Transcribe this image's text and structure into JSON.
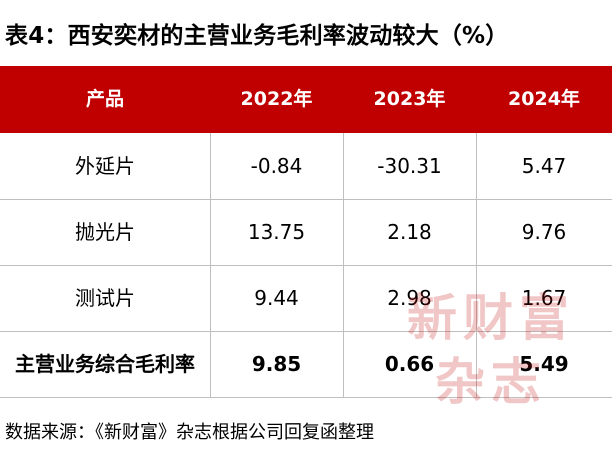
{
  "title": "表4：西安奕材的主营业务毛利率波动较大（%）",
  "table": {
    "headers": [
      "产品",
      "2022年",
      "2023年",
      "2024年"
    ],
    "rows": [
      [
        "外延片",
        "-0.84",
        "-30.31",
        "5.47"
      ],
      [
        "抛光片",
        "13.75",
        "2.18",
        "9.76"
      ],
      [
        "测试片",
        "9.44",
        "2.98",
        "1.67"
      ],
      [
        "主营业务综合毛利率",
        "9.85",
        "0.66",
        "5.49"
      ]
    ]
  },
  "source": "数据来源：《新财富》杂志根据公司回复函整理",
  "watermark": {
    "line1": "新财富",
    "line2": "杂志"
  },
  "colors": {
    "header_bg": "#c00000",
    "header_text": "#ffffff",
    "grid": "#bfbfbf"
  }
}
